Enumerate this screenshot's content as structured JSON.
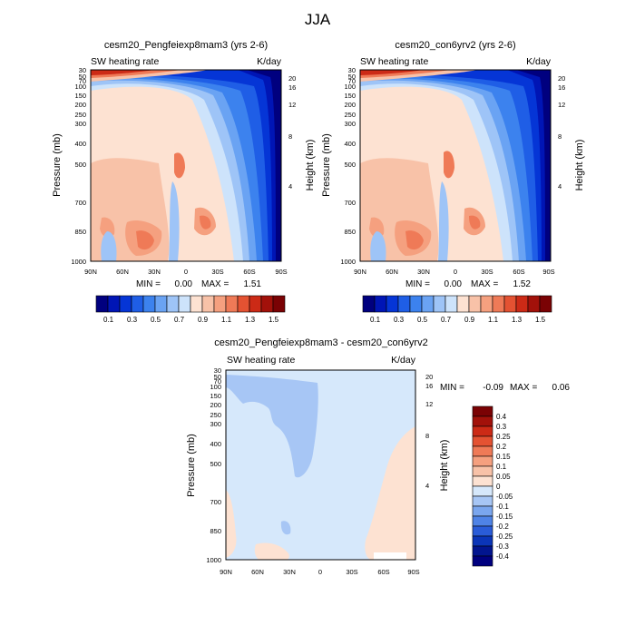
{
  "figure_title": "JJA",
  "chart_data": [
    {
      "type": "heatmap",
      "title": "cesm20_Pengfeiexp8mam3 (yrs 2-6)",
      "left_label": "SW heating rate",
      "right_label": "K/day",
      "ylabel": "Pressure (mb)",
      "ylabel_right": "Height (km)",
      "pressure_ticks": [
        "30",
        "50",
        "70",
        "100",
        "150",
        "200",
        "250",
        "300",
        "400",
        "500",
        "700",
        "850",
        "1000"
      ],
      "height_ticks": [
        "20",
        "16",
        "12",
        "8",
        "4"
      ],
      "x_ticks": [
        "90N",
        "60N",
        "30N",
        "0",
        "30S",
        "60S",
        "90S"
      ],
      "stats": {
        "min_label": "MIN =",
        "min": "0.00",
        "max_label": "MAX =",
        "max": "1.51"
      },
      "colorbar_labels": [
        "0.1",
        "0.3",
        "0.5",
        "0.7",
        "0.9",
        "1.1",
        "1.3",
        "1.5"
      ],
      "colorbar_colors": [
        "#00007f",
        "#0015b5",
        "#0535d6",
        "#1f5ee6",
        "#3c82ee",
        "#6aa3f3",
        "#9ec4f7",
        "#cde3fb",
        "#fde2d2",
        "#f8c2a8",
        "#f5a07f",
        "#ef7a57",
        "#e45232",
        "#cc2a16",
        "#a2110a",
        "#7a0204"
      ],
      "peak": "1.51"
    },
    {
      "type": "heatmap",
      "title": "cesm20_con6yrv2 (yrs 2-6)",
      "left_label": "SW heating rate",
      "right_label": "K/day",
      "ylabel": "Pressure (mb)",
      "ylabel_right": "Height (km)",
      "pressure_ticks": [
        "30",
        "50",
        "70",
        "100",
        "150",
        "200",
        "250",
        "300",
        "400",
        "500",
        "700",
        "850",
        "1000"
      ],
      "height_ticks": [
        "20",
        "16",
        "12",
        "8",
        "4"
      ],
      "x_ticks": [
        "90N",
        "60N",
        "30N",
        "0",
        "30S",
        "60S",
        "90S"
      ],
      "stats": {
        "min_label": "MIN =",
        "min": "0.00",
        "max_label": "MAX =",
        "max": "1.52"
      },
      "colorbar_labels": [
        "0.1",
        "0.3",
        "0.5",
        "0.7",
        "0.9",
        "1.1",
        "1.3",
        "1.5"
      ],
      "colorbar_colors": [
        "#00007f",
        "#0015b5",
        "#0535d6",
        "#1f5ee6",
        "#3c82ee",
        "#6aa3f3",
        "#9ec4f7",
        "#cde3fb",
        "#fde2d2",
        "#f8c2a8",
        "#f5a07f",
        "#ef7a57",
        "#e45232",
        "#cc2a16",
        "#a2110a",
        "#7a0204"
      ],
      "peak": "1.52"
    },
    {
      "type": "heatmap",
      "title": "cesm20_Pengfeiexp8mam3 - cesm20_con6yrv2",
      "left_label": "SW heating rate",
      "right_label": "K/day",
      "ylabel": "Pressure (mb)",
      "ylabel_right": "Height (km)",
      "pressure_ticks": [
        "30",
        "50",
        "70",
        "100",
        "150",
        "200",
        "250",
        "300",
        "400",
        "500",
        "700",
        "850",
        "1000"
      ],
      "height_ticks": [
        "20",
        "16",
        "12",
        "8",
        "4"
      ],
      "x_ticks": [
        "90N",
        "60N",
        "30N",
        "0",
        "30S",
        "60S",
        "90S"
      ],
      "stats": {
        "min_label": "MIN =",
        "min": "-0.09",
        "max_label": "MAX =",
        "max": "0.06"
      },
      "colorbar_labels": [
        "0.4",
        "0.3",
        "0.25",
        "0.2",
        "0.15",
        "0.1",
        "0.05",
        "0",
        "-0.05",
        "-0.1",
        "-0.15",
        "-0.2",
        "-0.25",
        "-0.3",
        "-0.4"
      ],
      "colorbar_colors": [
        "#7a0204",
        "#a2110a",
        "#cc2a16",
        "#e45232",
        "#ef7a57",
        "#f5a07f",
        "#f8c2a8",
        "#fde2d2",
        "#d6e8fb",
        "#a7c6f5",
        "#7aa6ee",
        "#4f83e6",
        "#2a5cd8",
        "#0b35b8",
        "#02158f",
        "#00007f"
      ],
      "fill_main": "#d6e8fb",
      "fill_neg": "#a7c6f5",
      "fill_pos": "#fde2d2"
    }
  ]
}
